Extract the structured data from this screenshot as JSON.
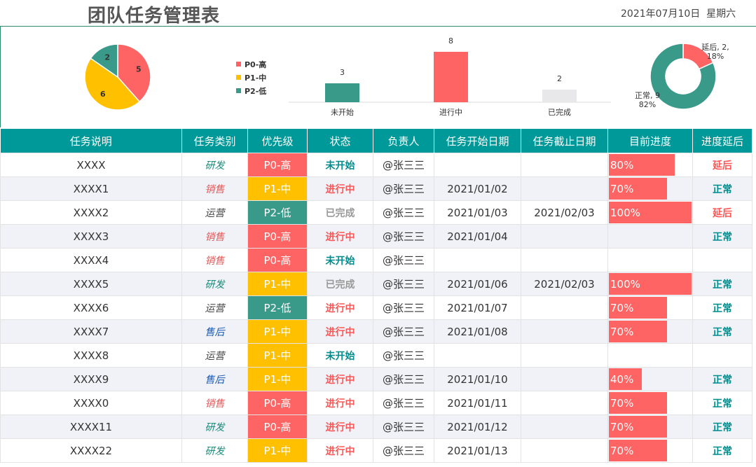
{
  "header": {
    "title": "团队任务管理表",
    "date": "2021年07月10日",
    "weekday": "星期六"
  },
  "chart_data": [
    {
      "type": "pie",
      "labels": [
        "P0-高",
        "P1-中",
        "P2-低"
      ],
      "values": [
        5,
        6,
        2
      ],
      "colors": [
        "#ff6464",
        "#ffc000",
        "#3a9a8a"
      ],
      "legend": "right"
    },
    {
      "type": "bar",
      "categories": [
        "未开始",
        "进行中",
        "已完成"
      ],
      "values": [
        3,
        8,
        2
      ],
      "colors": [
        "#3a9a8a",
        "#ff6464",
        "#e8e8ea"
      ]
    },
    {
      "type": "pie",
      "donut": true,
      "labels": [
        "延后",
        "正常"
      ],
      "values": [
        2,
        9
      ],
      "percent_labels": [
        "延后, 2, 18%",
        "正常, 9, 82%"
      ],
      "label_lines": [
        [
          "延后, 2,",
          "18%"
        ],
        [
          "正常, 9",
          "82%"
        ]
      ],
      "colors": [
        "#ff6464",
        "#3a9a8a"
      ]
    }
  ],
  "table": {
    "columns": [
      "任务说明",
      "任务类别",
      "优先级",
      "状态",
      "负责人",
      "任务开始日期",
      "任务截止日期",
      "目前进度",
      "进度延后"
    ],
    "rows": [
      {
        "desc": "XXXX",
        "category": "研发",
        "priority": "P0-高",
        "status": "未开始",
        "owner": "@张三三",
        "start": "",
        "end": "",
        "progress": 0.8,
        "progress_label": "80%",
        "delay": "延后"
      },
      {
        "desc": "XXXX1",
        "category": "销售",
        "priority": "P1-中",
        "status": "进行中",
        "owner": "@张三三",
        "start": "2021/01/02",
        "end": "",
        "progress": 0.7,
        "progress_label": "70%",
        "delay": "正常"
      },
      {
        "desc": "XXXX2",
        "category": "运营",
        "priority": "P2-低",
        "status": "已完成",
        "owner": "@张三三",
        "start": "2021/01/03",
        "end": "2021/02/03",
        "progress": 1.0,
        "progress_label": "100%",
        "delay": "延后"
      },
      {
        "desc": "XXXX3",
        "category": "销售",
        "priority": "P0-高",
        "status": "进行中",
        "owner": "@张三三",
        "start": "2021/01/04",
        "end": "",
        "progress": null,
        "progress_label": "",
        "delay": "正常"
      },
      {
        "desc": "XXXX4",
        "category": "销售",
        "priority": "P0-高",
        "status": "未开始",
        "owner": "@张三三",
        "start": "",
        "end": "",
        "progress": null,
        "progress_label": "",
        "delay": ""
      },
      {
        "desc": "XXXX5",
        "category": "研发",
        "priority": "P1-中",
        "status": "已完成",
        "owner": "@张三三",
        "start": "2021/01/06",
        "end": "2021/02/03",
        "progress": 1.0,
        "progress_label": "100%",
        "delay": "正常"
      },
      {
        "desc": "XXXX6",
        "category": "运营",
        "priority": "P2-低",
        "status": "进行中",
        "owner": "@张三三",
        "start": "2021/01/07",
        "end": "",
        "progress": 0.7,
        "progress_label": "70%",
        "delay": "正常"
      },
      {
        "desc": "XXXX7",
        "category": "售后",
        "priority": "P1-中",
        "status": "进行中",
        "owner": "@张三三",
        "start": "2021/01/08",
        "end": "",
        "progress": 0.7,
        "progress_label": "70%",
        "delay": "正常"
      },
      {
        "desc": "XXXX8",
        "category": "运营",
        "priority": "P1-中",
        "status": "未开始",
        "owner": "@张三三",
        "start": "",
        "end": "",
        "progress": null,
        "progress_label": "",
        "delay": ""
      },
      {
        "desc": "XXXX9",
        "category": "售后",
        "priority": "P1-中",
        "status": "进行中",
        "owner": "@张三三",
        "start": "2021/01/10",
        "end": "",
        "progress": 0.4,
        "progress_label": "40%",
        "delay": "正常"
      },
      {
        "desc": "XXXX0",
        "category": "销售",
        "priority": "P0-高",
        "status": "进行中",
        "owner": "@张三三",
        "start": "2021/01/11",
        "end": "",
        "progress": 0.7,
        "progress_label": "70%",
        "delay": "正常"
      },
      {
        "desc": "XXXX11",
        "category": "研发",
        "priority": "P0-高",
        "status": "进行中",
        "owner": "@张三三",
        "start": "2021/01/12",
        "end": "",
        "progress": 0.7,
        "progress_label": "70%",
        "delay": "正常"
      },
      {
        "desc": "XXXX22",
        "category": "研发",
        "priority": "P1-中",
        "status": "进行中",
        "owner": "@张三三",
        "start": "2021/01/13",
        "end": "",
        "progress": 0.7,
        "progress_label": "70%",
        "delay": "正常"
      }
    ]
  }
}
